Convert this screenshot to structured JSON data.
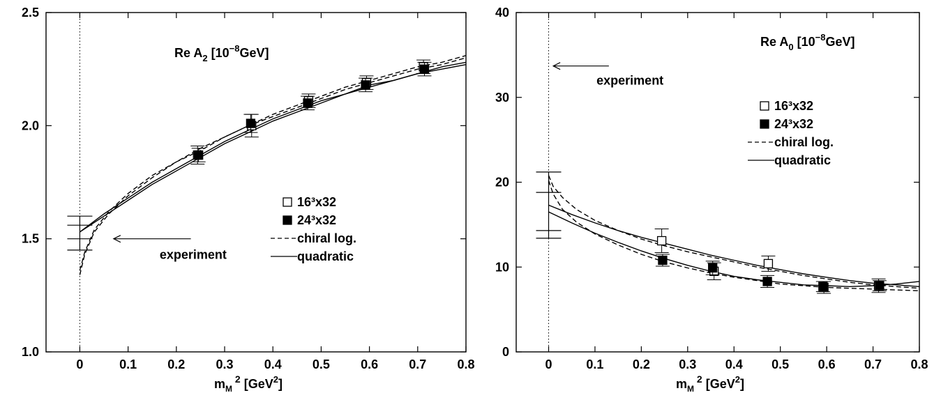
{
  "chart_data": [
    {
      "type": "scatter",
      "title": "Re A",
      "title_sub": "2",
      "title_unit_pre": " [10",
      "title_unit_sup": "−8",
      "title_unit_post": "GeV]",
      "xlabel": "m",
      "xlabel_sub": "M",
      "xlabel_sup": "2",
      "xlabel_unit_pre": " [GeV",
      "xlabel_unit_sup": "2",
      "xlabel_unit_post": "]",
      "xlim": [
        -0.07,
        0.8
      ],
      "ylim": [
        1.0,
        2.5
      ],
      "xticks": [
        "0",
        "0.1",
        "0.2",
        "0.3",
        "0.4",
        "0.5",
        "0.6",
        "0.7",
        "0.8"
      ],
      "xtick_values": [
        0,
        0.1,
        0.2,
        0.3,
        0.4,
        0.5,
        0.6,
        0.7,
        0.8
      ],
      "yticks": [
        "1.0",
        "1.5",
        "2.0",
        "2.5"
      ],
      "ytick_values": [
        1.0,
        1.5,
        2.0,
        2.5
      ],
      "experiment": {
        "label": "experiment",
        "values": [
          1.6,
          1.56,
          1.5,
          1.45
        ],
        "x": 0,
        "arrow_to": [
          0.07,
          1.5
        ],
        "arrow_from": [
          0.23,
          1.5
        ]
      },
      "series": [
        {
          "name": "16³x32",
          "marker": "open-square",
          "points": [
            {
              "x": 0.244,
              "y": 1.87,
              "err": 0.04
            },
            {
              "x": 0.356,
              "y": 2.0,
              "err": 0.05
            },
            {
              "x": 0.474,
              "y": 2.11,
              "err": 0.03
            },
            {
              "x": 0.594,
              "y": 2.19,
              "err": 0.03
            },
            {
              "x": 0.712,
              "y": 2.26,
              "err": 0.03
            }
          ]
        },
        {
          "name": "24³x32",
          "marker": "filled-square",
          "points": [
            {
              "x": 0.246,
              "y": 1.87,
              "err": 0.03
            },
            {
              "x": 0.354,
              "y": 2.01,
              "err": 0.04
            },
            {
              "x": 0.472,
              "y": 2.1,
              "err": 0.03
            },
            {
              "x": 0.592,
              "y": 2.18,
              "err": 0.03
            },
            {
              "x": 0.714,
              "y": 2.25,
              "err": 0.03
            }
          ]
        },
        {
          "name": "chiral log.",
          "style": "dashed",
          "curves": [
            {
              "x": [
                0,
                0.01,
                0.03,
                0.06,
                0.1,
                0.15,
                0.2,
                0.25,
                0.3,
                0.35,
                0.4,
                0.45,
                0.5,
                0.55,
                0.6,
                0.65,
                0.7,
                0.75,
                0.8
              ],
              "y": [
                1.34,
                1.43,
                1.53,
                1.61,
                1.69,
                1.77,
                1.84,
                1.89,
                1.95,
                2.0,
                2.05,
                2.09,
                2.13,
                2.17,
                2.2,
                2.23,
                2.26,
                2.28,
                2.31
              ]
            },
            {
              "x": [
                0,
                0.01,
                0.03,
                0.06,
                0.1,
                0.15,
                0.2,
                0.25,
                0.3,
                0.35,
                0.4,
                0.45,
                0.5,
                0.55,
                0.6,
                0.65,
                0.7,
                0.75,
                0.8
              ],
              "y": [
                1.36,
                1.44,
                1.54,
                1.62,
                1.7,
                1.78,
                1.84,
                1.9,
                1.95,
                2.0,
                2.04,
                2.08,
                2.12,
                2.16,
                2.19,
                2.22,
                2.25,
                2.27,
                2.3
              ]
            }
          ]
        },
        {
          "name": "quadratic",
          "style": "solid",
          "curves": [
            {
              "x": [
                0,
                0.05,
                0.1,
                0.15,
                0.2,
                0.25,
                0.3,
                0.35,
                0.4,
                0.45,
                0.5,
                0.55,
                0.6,
                0.65,
                0.7,
                0.75,
                0.8
              ],
              "y": [
                1.53,
                1.6,
                1.67,
                1.74,
                1.8,
                1.86,
                1.92,
                1.97,
                2.02,
                2.06,
                2.1,
                2.14,
                2.17,
                2.2,
                2.23,
                2.26,
                2.28
              ]
            },
            {
              "x": [
                0,
                0.05,
                0.1,
                0.15,
                0.2,
                0.25,
                0.3,
                0.35,
                0.4,
                0.45,
                0.5,
                0.55,
                0.6,
                0.65,
                0.7,
                0.75,
                0.8
              ],
              "y": [
                1.53,
                1.61,
                1.68,
                1.75,
                1.81,
                1.87,
                1.93,
                1.98,
                2.03,
                2.07,
                2.11,
                2.14,
                2.18,
                2.2,
                2.23,
                2.25,
                2.27
              ]
            }
          ]
        }
      ],
      "legend_position": "center-right"
    },
    {
      "type": "scatter",
      "title": "Re A",
      "title_sub": "0",
      "title_unit_pre": "  [10",
      "title_unit_sup": "−8",
      "title_unit_post": "GeV]",
      "xlabel": "m",
      "xlabel_sub": "M",
      "xlabel_sup": "2",
      "xlabel_unit_pre": " [GeV",
      "xlabel_unit_sup": "2",
      "xlabel_unit_post": "]",
      "xlim": [
        -0.07,
        0.8
      ],
      "ylim": [
        0,
        40
      ],
      "xticks": [
        "0",
        "0.1",
        "0.2",
        "0.3",
        "0.4",
        "0.5",
        "0.6",
        "0.7",
        "0.8"
      ],
      "xtick_values": [
        0,
        0.1,
        0.2,
        0.3,
        0.4,
        0.5,
        0.6,
        0.7,
        0.8
      ],
      "yticks": [
        "0",
        "10",
        "20",
        "30",
        "40"
      ],
      "ytick_values": [
        0,
        10,
        20,
        30,
        40
      ],
      "experiment": {
        "label": "experiment",
        "values": [
          33.7
        ],
        "x": 0,
        "arrow_to": [
          0.01,
          33.7
        ],
        "arrow_from": [
          0.13,
          33.7
        ]
      },
      "experiment_bars": [
        21.2,
        18.8,
        14.3,
        13.4
      ],
      "series": [
        {
          "name": "16³x32",
          "marker": "open-square",
          "points": [
            {
              "x": 0.244,
              "y": 13.1,
              "err": 1.4
            },
            {
              "x": 0.357,
              "y": 9.5,
              "err": 1.0
            },
            {
              "x": 0.474,
              "y": 10.4,
              "err": 0.9
            },
            {
              "x": 0.594,
              "y": 7.6,
              "err": 0.7
            },
            {
              "x": 0.712,
              "y": 7.8,
              "err": 0.8
            }
          ]
        },
        {
          "name": "24³x32",
          "marker": "filled-square",
          "points": [
            {
              "x": 0.246,
              "y": 10.8,
              "err": 0.7
            },
            {
              "x": 0.354,
              "y": 9.9,
              "err": 0.8
            },
            {
              "x": 0.472,
              "y": 8.3,
              "err": 0.7
            },
            {
              "x": 0.592,
              "y": 7.7,
              "err": 0.6
            },
            {
              "x": 0.714,
              "y": 7.8,
              "err": 0.6
            }
          ]
        },
        {
          "name": "chiral log.",
          "style": "dashed",
          "curves": [
            {
              "x": [
                0,
                0.01,
                0.03,
                0.06,
                0.1,
                0.15,
                0.2,
                0.25,
                0.3,
                0.35,
                0.4,
                0.45,
                0.5,
                0.55,
                0.6,
                0.65,
                0.7,
                0.75,
                0.8
              ],
              "y": [
                20.8,
                19.5,
                18.2,
                16.8,
                15.5,
                14.3,
                13.3,
                12.5,
                11.8,
                11.2,
                10.6,
                10.0,
                9.5,
                9.0,
                8.6,
                8.2,
                7.9,
                7.7,
                7.5
              ]
            },
            {
              "x": [
                0,
                0.01,
                0.03,
                0.06,
                0.1,
                0.15,
                0.2,
                0.25,
                0.3,
                0.35,
                0.4,
                0.45,
                0.5,
                0.55,
                0.6,
                0.65,
                0.7,
                0.75,
                0.8
              ],
              "y": [
                20.2,
                18.6,
                16.8,
                15.3,
                13.9,
                12.6,
                11.5,
                10.6,
                9.9,
                9.3,
                8.8,
                8.4,
                8.0,
                7.8,
                7.6,
                7.5,
                7.4,
                7.3,
                7.2
              ]
            }
          ]
        },
        {
          "name": "quadratic",
          "style": "solid",
          "curves": [
            {
              "x": [
                0,
                0.05,
                0.1,
                0.15,
                0.2,
                0.25,
                0.3,
                0.35,
                0.4,
                0.45,
                0.5,
                0.55,
                0.6,
                0.65,
                0.7,
                0.75,
                0.8
              ],
              "y": [
                17.3,
                16.2,
                15.2,
                14.3,
                13.5,
                12.8,
                12.1,
                11.4,
                10.8,
                10.2,
                9.7,
                9.2,
                8.8,
                8.4,
                8.1,
                7.9,
                7.7
              ]
            },
            {
              "x": [
                0,
                0.05,
                0.1,
                0.15,
                0.2,
                0.25,
                0.3,
                0.35,
                0.4,
                0.45,
                0.5,
                0.55,
                0.6,
                0.65,
                0.7,
                0.75,
                0.8
              ],
              "y": [
                16.5,
                15.2,
                14.0,
                12.9,
                11.9,
                11.0,
                10.2,
                9.5,
                8.9,
                8.5,
                8.2,
                7.9,
                7.8,
                7.7,
                7.8,
                8.0,
                8.3
              ]
            }
          ]
        }
      ],
      "legend_position": "top-center"
    }
  ]
}
